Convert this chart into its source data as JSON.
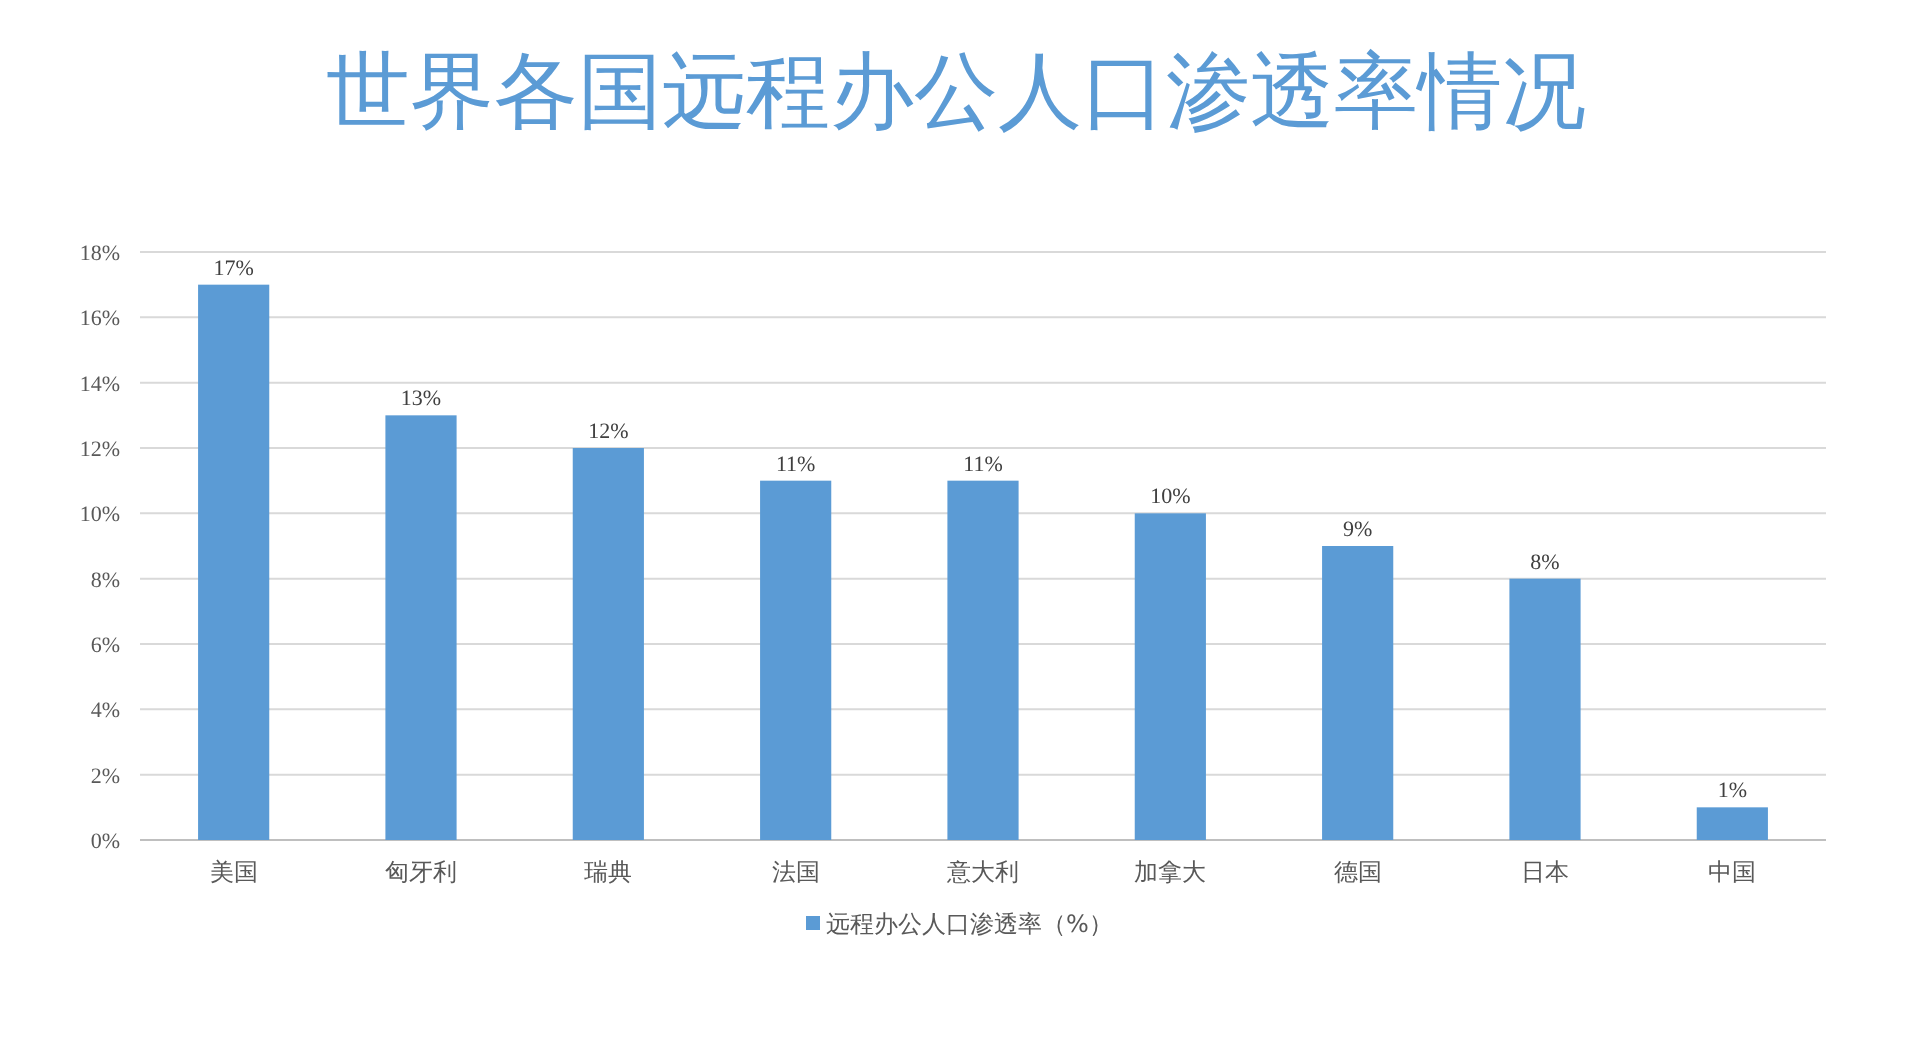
{
  "chart_data": {
    "type": "bar",
    "title": "世界各国远程办公人口渗透率情况",
    "categories": [
      "美国",
      "匈牙利",
      "瑞典",
      "法国",
      "意大利",
      "加拿大",
      "德国",
      "日本",
      "中国"
    ],
    "series": [
      {
        "name": "远程办公人口渗透率（%）",
        "color": "#5b9bd5",
        "values": [
          17,
          13,
          12,
          11,
          11,
          10,
          9,
          8,
          1
        ],
        "value_labels": [
          "17%",
          "13%",
          "12%",
          "11%",
          "11%",
          "10%",
          "9%",
          "8%",
          "1%"
        ]
      }
    ],
    "ylim": [
      0,
      18
    ],
    "yticks": [
      {
        "value": 0,
        "label": "0%"
      },
      {
        "value": 2,
        "label": "2%"
      },
      {
        "value": 4,
        "label": "4%"
      },
      {
        "value": 6,
        "label": "6%"
      },
      {
        "value": 8,
        "label": "8%"
      },
      {
        "value": 10,
        "label": "10%"
      },
      {
        "value": 12,
        "label": "12%"
      },
      {
        "value": 14,
        "label": "14%"
      },
      {
        "value": 16,
        "label": "16%"
      },
      {
        "value": 18,
        "label": "18%"
      }
    ],
    "grid": "y",
    "legend": "bottom"
  }
}
